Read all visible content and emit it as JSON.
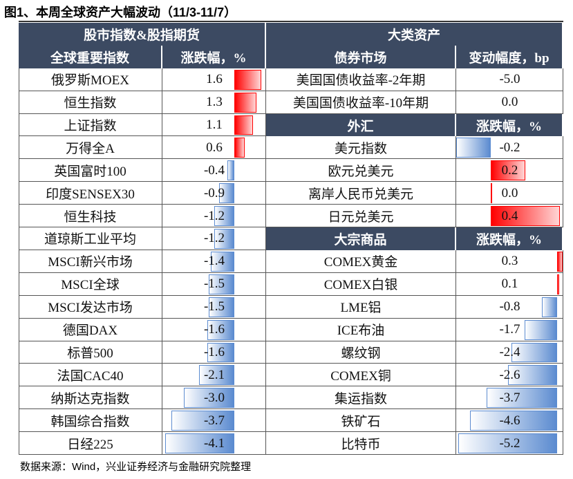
{
  "title": "图1、本周全球资产大幅波动（11/3-11/7）",
  "left": {
    "header": "股市指数&股指期货",
    "columns": [
      "全球重要指数",
      "涨跌幅，%"
    ],
    "rows": [
      [
        "俄罗斯MOEX",
        "1.6"
      ],
      [
        "恒生指数",
        "1.3"
      ],
      [
        "上证指数",
        "1.1"
      ],
      [
        "万得全A",
        "0.6"
      ],
      [
        "英国富时100",
        "-0.4"
      ],
      [
        "印度SENSEX30",
        "-0.9"
      ],
      [
        "恒生科技",
        "-1.2"
      ],
      [
        "道琼斯工业平均",
        "-1.2"
      ],
      [
        "MSCI新兴市场",
        "-1.4"
      ],
      [
        "MSCI全球",
        "-1.5"
      ],
      [
        "MSCI发达市场",
        "-1.5"
      ],
      [
        "德国DAX",
        "-1.6"
      ],
      [
        "标普500",
        "-1.6"
      ],
      [
        "法国CAC40",
        "-2.1"
      ],
      [
        "纳斯达克指数",
        "-3.0"
      ],
      [
        "韩国综合指数",
        "-3.7"
      ],
      [
        "日经225",
        "-4.1"
      ]
    ]
  },
  "right": {
    "header": "大类资产",
    "sections": [
      {
        "columns": [
          "债券市场",
          "变动幅度，bp"
        ],
        "rows": [
          [
            "美国国债收益率-2年期",
            "-5.0"
          ],
          [
            "美国国债收益率-10年期",
            "0.0"
          ]
        ]
      },
      {
        "columns": [
          "外汇",
          "涨跌幅，%"
        ],
        "rows": [
          [
            "美元指数",
            "-0.2"
          ],
          [
            "欧元兑美元",
            "0.2"
          ],
          [
            "离岸人民币兑美元",
            "0.0"
          ],
          [
            "日元兑美元",
            "0.4"
          ]
        ]
      },
      {
        "columns": [
          "大宗商品",
          "涨跌幅，%"
        ],
        "rows": [
          [
            "COMEX黄金",
            "0.3"
          ],
          [
            "COMEX白银",
            "0.1"
          ],
          [
            "LME铝",
            "-0.8"
          ],
          [
            "ICE布油",
            "-1.7"
          ],
          [
            "螺纹钢",
            "-2.4"
          ],
          [
            "COMEX铜",
            "-2.6"
          ],
          [
            "集运指数",
            "-3.7"
          ],
          [
            "铁矿石",
            "-4.6"
          ],
          [
            "比特币",
            "-5.2"
          ]
        ]
      }
    ]
  },
  "source": "数据来源：Wind，兴业证券经济与金融研究院整理"
}
